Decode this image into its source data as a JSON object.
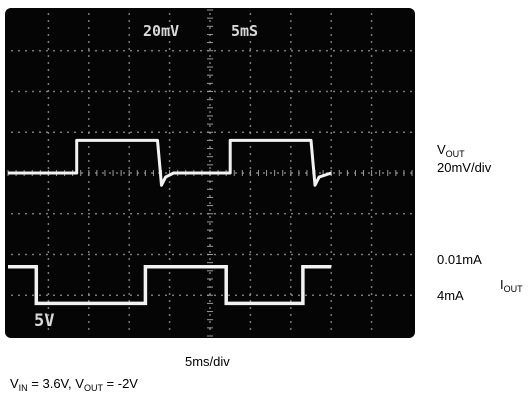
{
  "chart_data": {
    "type": "line",
    "title": "",
    "scope_readouts": {
      "ch1_scale": "20mV",
      "timebase": "5mS",
      "ch2_scale": "5V"
    },
    "x_axis_label": "5ms/div",
    "x_divisions": 10,
    "y_divisions": 8,
    "y_units": "divisions from center",
    "x_units": "ms",
    "series": [
      {
        "name": "V",
        "name_sub": "OUT",
        "scale_label": "20mV/div",
        "x": [
          0,
          8.5,
          8.5,
          18.5,
          19.0,
          19.5,
          20.5,
          27.5,
          27.5,
          37.5,
          38.0,
          38.5,
          40.0
        ],
        "y": [
          0.0,
          0.0,
          0.8,
          0.8,
          -0.3,
          -0.1,
          0.0,
          0.0,
          0.8,
          0.8,
          -0.3,
          -0.1,
          0.0
        ]
      },
      {
        "name": "I",
        "name_sub": "OUT",
        "levels": [
          "0.01mA",
          "4mA"
        ],
        "x": [
          0,
          3.5,
          3.5,
          17.0,
          17.0,
          27.0,
          27.0,
          36.5,
          36.5,
          40.0
        ],
        "y": [
          -2.3,
          -2.3,
          -3.2,
          -3.2,
          -2.3,
          -2.3,
          -3.2,
          -3.2,
          -2.3,
          -2.3
        ]
      }
    ]
  },
  "conditions": {
    "vin_sym": "V",
    "vin_sub": "IN",
    "vin_rest": " = 3.6V, ",
    "vout_sym": "V",
    "vout_sub": "OUT",
    "vout_rest": " = -2V"
  },
  "colors": {
    "screen": "#050505",
    "trace": "#f2f2f2",
    "grid": "#9a9a9a"
  }
}
